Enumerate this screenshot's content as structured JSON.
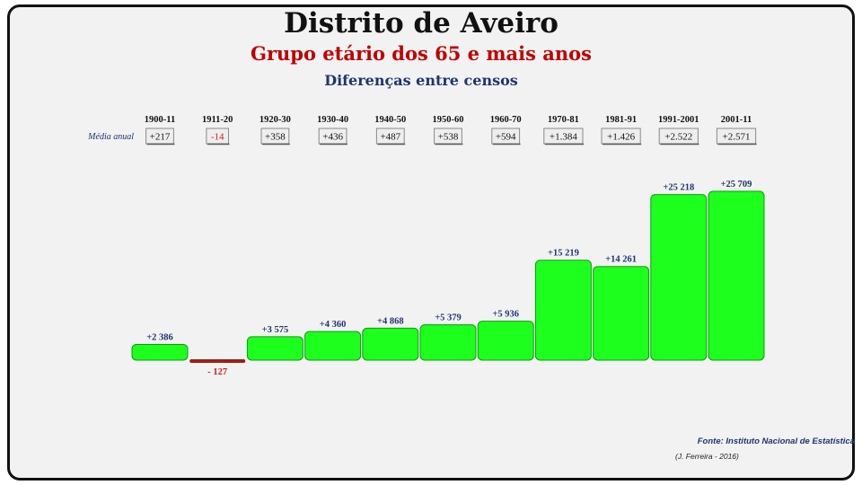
{
  "title": "Distrito de Aveiro",
  "subtitle": "Grupo etário dos 65 e mais anos",
  "subtitle2": "Diferenças entre censos",
  "row_label": "Média anual",
  "source": "Fonte: Instituto Nacional de Estatística",
  "credit": "(J. Ferreira - 2016)",
  "colors": {
    "positive_bar": "#1dff1d",
    "positive_edge": "#129912",
    "negative_bar": "#9c1f14",
    "positive_label": "#1f3470",
    "negative_label": "#d11a1a"
  },
  "chart_data": {
    "type": "bar",
    "title": "Distrito de Aveiro",
    "subtitle": "Grupo etário dos 65 e mais anos",
    "categories": [
      "1900-11",
      "1911-20",
      "1920-30",
      "1930-40",
      "1940-50",
      "1950-60",
      "1960-70",
      "1970-81",
      "1981-91",
      "1991-2001",
      "2001-11"
    ],
    "values": [
      2386,
      -127,
      3575,
      4360,
      4868,
      5379,
      5936,
      15219,
      14261,
      25218,
      25709
    ],
    "value_labels": [
      "+2 386",
      "- 127",
      "+3 575",
      "+4 360",
      "+4 868",
      "+5 379",
      "+5 936",
      "+15 219",
      "+14 261",
      "+25 218",
      "+25 709"
    ],
    "annual_average": [
      "+217",
      "-14",
      "+358",
      "+436",
      "+487",
      "+538",
      "+594",
      "+1.384",
      "+1.426",
      "+2.522",
      "+2.571"
    ],
    "annual_average_label": "Média anual",
    "xlabel": "",
    "ylabel": "",
    "grid": false
  }
}
